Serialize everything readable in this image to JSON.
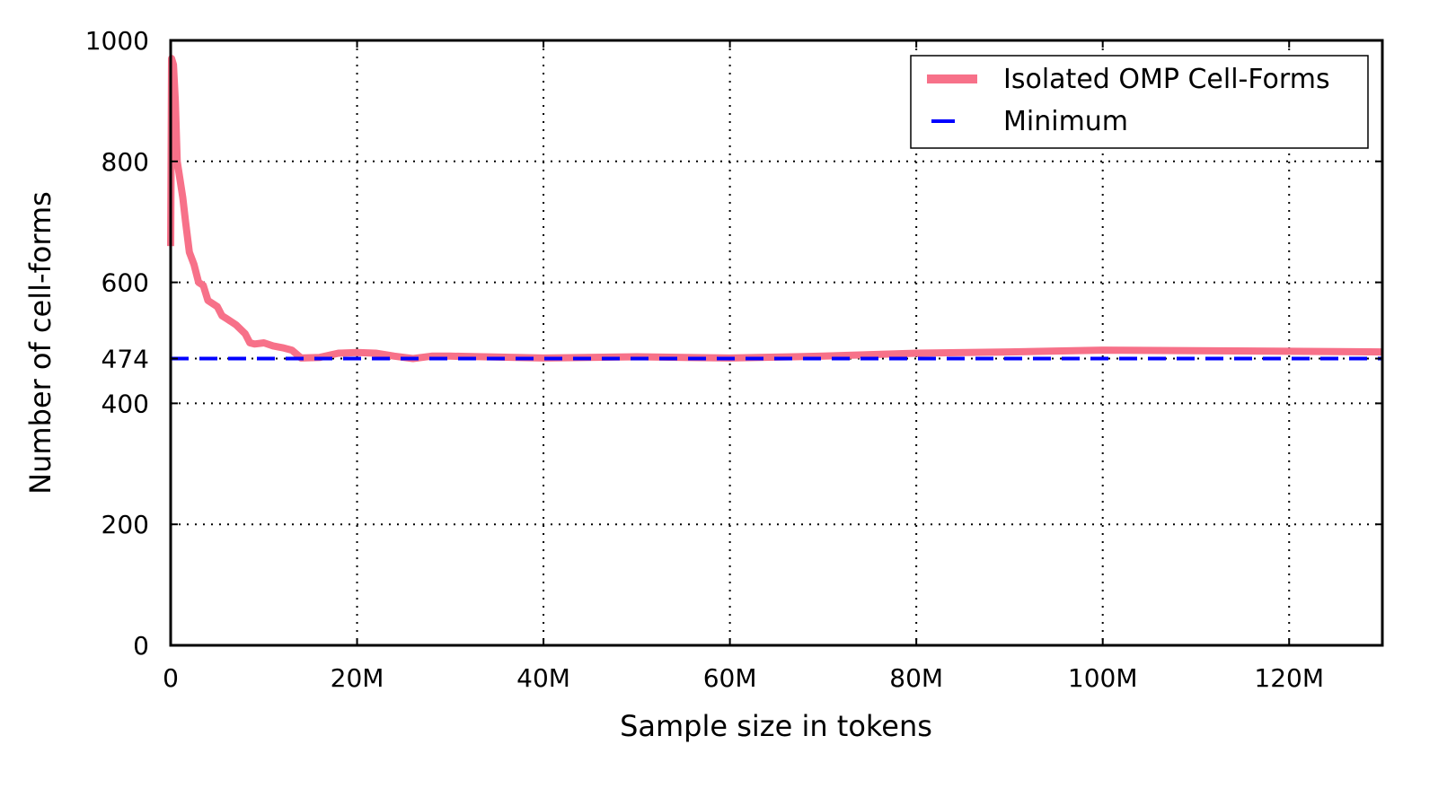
{
  "chart_data": {
    "type": "line",
    "title": "",
    "xlabel": "Sample size in tokens",
    "ylabel": "Number of cell-forms",
    "xlim": [
      0,
      130000000
    ],
    "ylim": [
      0,
      1000
    ],
    "grid": true,
    "legend_position": "top-right",
    "x_ticks": [
      {
        "value": 0,
        "label": "0"
      },
      {
        "value": 20000000,
        "label": "20M"
      },
      {
        "value": 40000000,
        "label": "40M"
      },
      {
        "value": 60000000,
        "label": "60M"
      },
      {
        "value": 80000000,
        "label": "80M"
      },
      {
        "value": 100000000,
        "label": "100M"
      },
      {
        "value": 120000000,
        "label": "120M"
      }
    ],
    "y_ticks": [
      {
        "value": 0,
        "label": "0"
      },
      {
        "value": 200,
        "label": "200"
      },
      {
        "value": 400,
        "label": "400"
      },
      {
        "value": 474,
        "label": "474"
      },
      {
        "value": 600,
        "label": "600"
      },
      {
        "value": 800,
        "label": "800"
      },
      {
        "value": 1000,
        "label": "1000"
      }
    ],
    "series": [
      {
        "name": "Isolated OMP Cell-Forms",
        "color": "#f77189",
        "style": "solid",
        "points": [
          [
            0,
            660
          ],
          [
            100000,
            970
          ],
          [
            300000,
            960
          ],
          [
            500000,
            900
          ],
          [
            700000,
            800
          ],
          [
            1000000,
            770
          ],
          [
            1300000,
            740
          ],
          [
            1600000,
            700
          ],
          [
            2000000,
            650
          ],
          [
            2500000,
            630
          ],
          [
            3000000,
            600
          ],
          [
            3500000,
            595
          ],
          [
            4000000,
            570
          ],
          [
            5000000,
            560
          ],
          [
            5500000,
            545
          ],
          [
            6000000,
            540
          ],
          [
            7000000,
            530
          ],
          [
            8000000,
            515
          ],
          [
            8500000,
            500
          ],
          [
            9000000,
            498
          ],
          [
            10000000,
            500
          ],
          [
            11000000,
            495
          ],
          [
            12000000,
            492
          ],
          [
            13000000,
            488
          ],
          [
            14000000,
            475
          ],
          [
            16000000,
            476
          ],
          [
            18000000,
            483
          ],
          [
            20000000,
            484
          ],
          [
            22000000,
            483
          ],
          [
            24000000,
            478
          ],
          [
            26000000,
            474
          ],
          [
            28000000,
            478
          ],
          [
            30000000,
            478
          ],
          [
            40000000,
            475
          ],
          [
            50000000,
            477
          ],
          [
            60000000,
            475
          ],
          [
            70000000,
            478
          ],
          [
            80000000,
            483
          ],
          [
            90000000,
            485
          ],
          [
            100000000,
            488
          ],
          [
            110000000,
            487
          ],
          [
            120000000,
            486
          ],
          [
            130000000,
            485
          ]
        ]
      },
      {
        "name": "Minimum",
        "color": "#0000ff",
        "style": "dashed",
        "points": [
          [
            0,
            474
          ],
          [
            130000000,
            474
          ]
        ]
      }
    ]
  }
}
